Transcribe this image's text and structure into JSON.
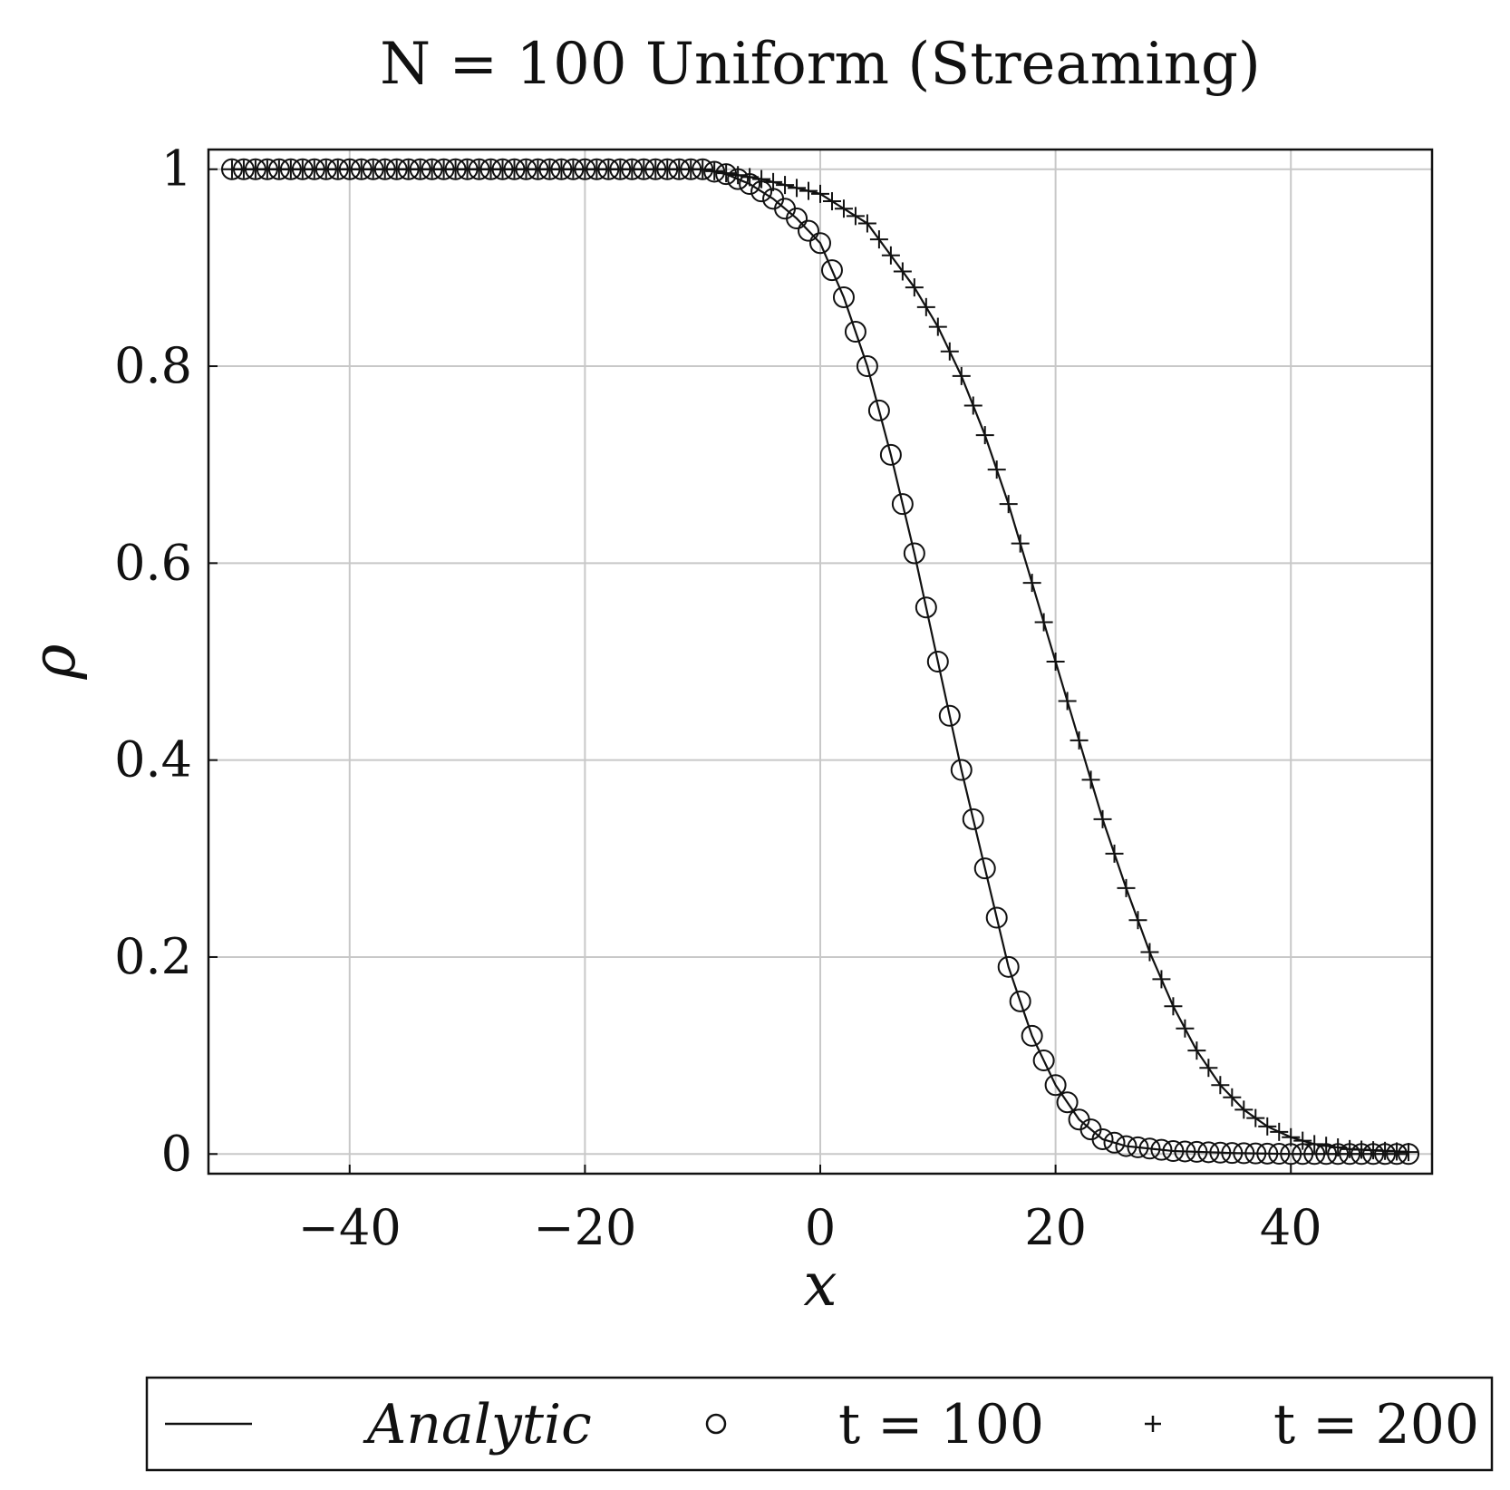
{
  "chart_data": {
    "type": "line",
    "title": "N = 100 Uniform (Streaming)",
    "xlabel": "x",
    "ylabel": "ρ",
    "xlim": [
      -52,
      52
    ],
    "ylim": [
      -0.02,
      1.02
    ],
    "xticks": [
      -40,
      -20,
      0,
      20,
      40
    ],
    "xtick_labels": [
      "−40",
      "−20",
      "0",
      "20",
      "40"
    ],
    "yticks": [
      0,
      0.2,
      0.4,
      0.6,
      0.8,
      1
    ],
    "ytick_labels": [
      "0",
      "0.2",
      "0.4",
      "0.6",
      "0.8",
      "1"
    ],
    "grid": true,
    "legend_placement": "bottom-outside",
    "legend": {
      "analytic_label": "Analytic",
      "t100_label": "t = 100",
      "t200_label": "t = 200"
    },
    "series": [
      {
        "name": "Analytic",
        "style": "line",
        "profiles": [
          {
            "x": [
              -50,
              -10,
              -8,
              -6,
              -4,
              -2,
              0,
              2,
              4,
              6,
              8,
              10,
              12,
              14,
              16,
              18,
              20,
              22,
              24,
              26,
              30,
              35,
              40,
              50
            ],
            "y": [
              1.0,
              1.0,
              0.995,
              0.985,
              0.97,
              0.95,
              0.925,
              0.87,
              0.8,
              0.71,
              0.61,
              0.5,
              0.39,
              0.29,
              0.19,
              0.12,
              0.07,
              0.035,
              0.015,
              0.008,
              0.003,
              0.001,
              0.0,
              0.0
            ]
          },
          {
            "x": [
              -50,
              -10,
              -5,
              0,
              4,
              8,
              10,
              12,
              14,
              16,
              18,
              20,
              22,
              24,
              26,
              28,
              30,
              32,
              34,
              36,
              38,
              40,
              42,
              45,
              50
            ],
            "y": [
              1.0,
              1.0,
              0.99,
              0.975,
              0.945,
              0.88,
              0.84,
              0.79,
              0.73,
              0.66,
              0.58,
              0.5,
              0.42,
              0.34,
              0.27,
              0.205,
              0.15,
              0.105,
              0.07,
              0.045,
              0.028,
              0.017,
              0.01,
              0.005,
              0.002
            ]
          }
        ]
      },
      {
        "name": "t = 100",
        "style": "circle",
        "x": [
          -50,
          -10,
          -8,
          -6,
          -4,
          -2,
          0,
          2,
          4,
          6,
          8,
          10,
          12,
          14,
          16,
          18,
          20,
          22,
          24,
          26,
          30,
          35,
          40,
          50
        ],
        "y": [
          1.0,
          1.0,
          0.995,
          0.985,
          0.97,
          0.95,
          0.925,
          0.87,
          0.8,
          0.71,
          0.61,
          0.5,
          0.39,
          0.29,
          0.19,
          0.12,
          0.07,
          0.035,
          0.015,
          0.008,
          0.003,
          0.001,
          0.0,
          0.0
        ]
      },
      {
        "name": "t = 200",
        "style": "plus",
        "x": [
          -50,
          -10,
          -5,
          0,
          4,
          8,
          10,
          12,
          14,
          16,
          18,
          20,
          22,
          24,
          26,
          28,
          30,
          32,
          34,
          36,
          38,
          40,
          42,
          45,
          50
        ],
        "y": [
          1.0,
          1.0,
          0.99,
          0.975,
          0.945,
          0.88,
          0.84,
          0.79,
          0.73,
          0.66,
          0.58,
          0.5,
          0.42,
          0.34,
          0.27,
          0.205,
          0.15,
          0.105,
          0.07,
          0.045,
          0.028,
          0.017,
          0.01,
          0.005,
          0.002
        ]
      }
    ]
  }
}
